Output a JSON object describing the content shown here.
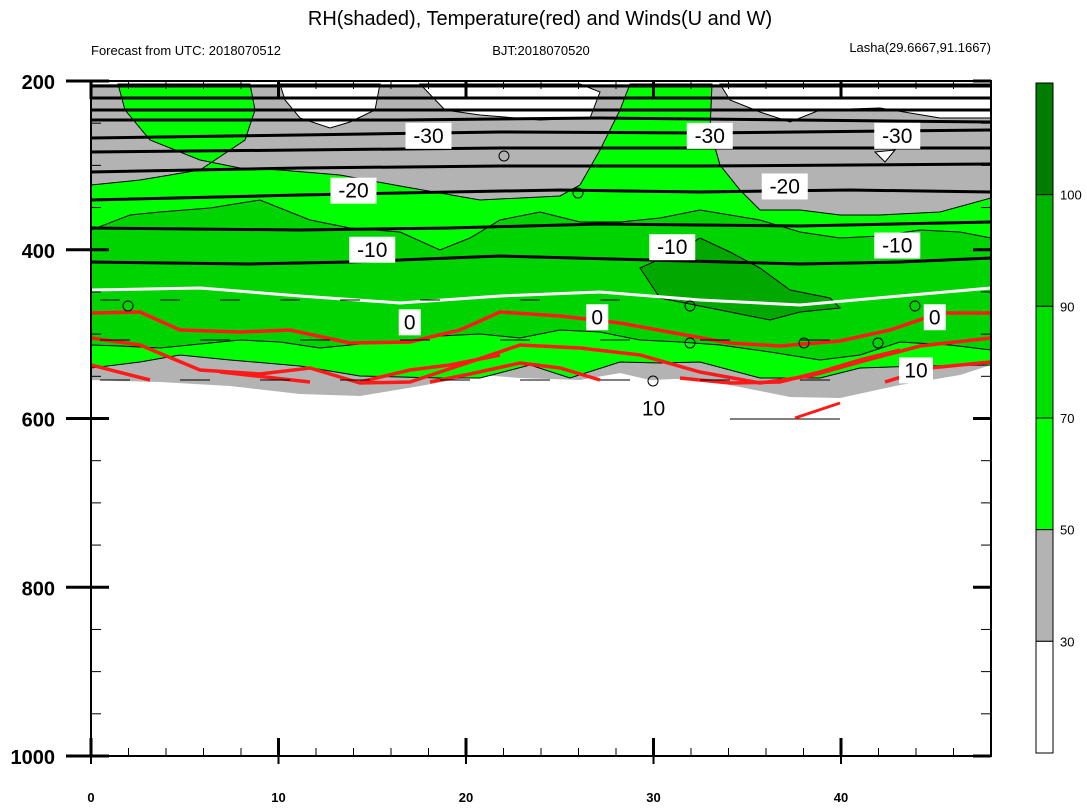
{
  "chart_data": {
    "type": "heatmap",
    "title": "RH(shaded), Temperature(red) and Winds(U and W)",
    "subtitle_left": "Forecast from UTC: 2018070512",
    "subtitle_center": "BJT:2018070520",
    "subtitle_right": "Lasha(29.6667,91.1667)",
    "xlim": [
      0,
      48
    ],
    "ylim": [
      1000,
      200
    ],
    "x_ticks": [
      0,
      10,
      20,
      30,
      40
    ],
    "y_ticks": [
      200,
      400,
      600,
      800,
      1000
    ],
    "x_tick_labels": [
      "0",
      "10",
      "20",
      "30",
      "40"
    ],
    "y_tick_labels": [
      "200",
      "400",
      "600",
      "800",
      "1000"
    ],
    "colorbar": {
      "levels": [
        30,
        50,
        70,
        90,
        100
      ],
      "labels": [
        "30",
        "50",
        "70",
        "90",
        "100"
      ],
      "colors": [
        "#ffffff",
        "#b3b3b3",
        "#00ff00",
        "#00e000",
        "#00b400",
        "#007d00"
      ]
    },
    "temperature_labels": [
      {
        "x": 18,
        "p": 265,
        "text": "-30"
      },
      {
        "x": 33,
        "p": 265,
        "text": "-30"
      },
      {
        "x": 43,
        "p": 265,
        "text": "-30"
      },
      {
        "x": 14,
        "p": 330,
        "text": "-20"
      },
      {
        "x": 37,
        "p": 325,
        "text": "-20"
      },
      {
        "x": 15,
        "p": 400,
        "text": "-10"
      },
      {
        "x": 31,
        "p": 397,
        "text": "-10"
      },
      {
        "x": 43,
        "p": 395,
        "text": "-10"
      },
      {
        "x": 17,
        "p": 486,
        "text": "0"
      },
      {
        "x": 27,
        "p": 480,
        "text": "0"
      },
      {
        "x": 45,
        "p": 480,
        "text": "0"
      },
      {
        "x": 30,
        "p": 588,
        "text": "10"
      },
      {
        "x": 44,
        "p": 543,
        "text": "10"
      }
    ]
  }
}
